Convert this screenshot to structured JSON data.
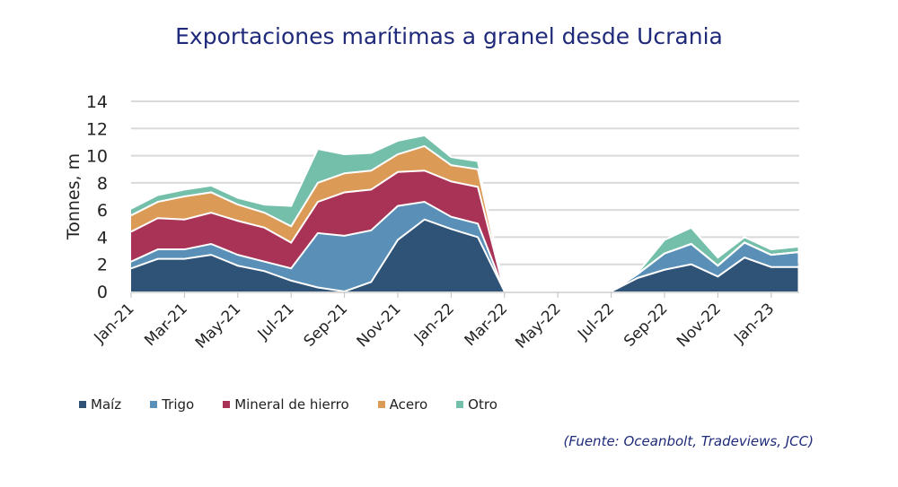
{
  "chart_data": {
    "type": "area",
    "stacked": true,
    "title": "Exportaciones marítimas a granel desde Ucrania",
    "xlabel": "",
    "ylabel": "Tonnes, m",
    "ylim": [
      0,
      14
    ],
    "yticks": [
      "0",
      "2",
      "4",
      "6",
      "8",
      "10",
      "12",
      "14"
    ],
    "grid": true,
    "legend_position": "bottom",
    "x": [
      "Jan-21",
      "Feb-21",
      "Mar-21",
      "Apr-21",
      "May-21",
      "Jun-21",
      "Jul-21",
      "Aug-21",
      "Sep-21",
      "Oct-21",
      "Nov-21",
      "Dec-21",
      "Jan-22",
      "Feb-22",
      "Mar-22",
      "Apr-22",
      "May-22",
      "Jun-22",
      "Jul-22",
      "Aug-22",
      "Sep-22",
      "Oct-22",
      "Nov-22",
      "Dec-22",
      "Jan-23",
      "Feb-23"
    ],
    "xticks": [
      "Jan-21",
      "Mar-21",
      "May-21",
      "Jul-21",
      "Sep-21",
      "Nov-21",
      "Jan-22",
      "Mar-22",
      "May-22",
      "Jul-22",
      "Sep-22",
      "Nov-22",
      "Jan-23"
    ],
    "gap": [
      "Apr-22",
      "May-22",
      "Jun-22"
    ],
    "series": [
      {
        "name": "Maíz",
        "color": "#2f5377",
        "values": [
          1.7,
          2.4,
          2.4,
          2.7,
          1.9,
          1.5,
          0.8,
          0.3,
          0,
          0.7,
          3.8,
          5.3,
          4.6,
          4.0,
          0,
          0,
          0,
          0,
          0,
          1.0,
          1.6,
          2.0,
          1.1,
          2.5,
          1.8,
          1.8
        ]
      },
      {
        "name": "Trigo",
        "color": "#5a90b8",
        "values": [
          0.5,
          0.7,
          0.7,
          0.8,
          0.8,
          0.7,
          0.9,
          4.0,
          4.1,
          3.8,
          2.5,
          1.3,
          0.9,
          1.0,
          0,
          0,
          0,
          0,
          0,
          0.3,
          1.2,
          1.5,
          0.8,
          1.1,
          0.9,
          1.1
        ]
      },
      {
        "name": "Mineral de hierro",
        "color": "#a93257",
        "values": [
          2.2,
          2.3,
          2.2,
          2.3,
          2.5,
          2.5,
          1.9,
          2.3,
          3.2,
          3.0,
          2.5,
          2.3,
          2.6,
          2.7,
          0,
          0,
          0,
          0,
          0,
          0,
          0,
          0,
          0,
          0,
          0,
          0
        ]
      },
      {
        "name": "Acero",
        "color": "#db9b57",
        "values": [
          1.2,
          1.2,
          1.7,
          1.5,
          1.2,
          1.1,
          1.2,
          1.4,
          1.4,
          1.4,
          1.3,
          1.8,
          1.2,
          1.3,
          0,
          0,
          0,
          0,
          0,
          0,
          0,
          0,
          0,
          0,
          0,
          0
        ]
      },
      {
        "name": "Otro",
        "color": "#74bfa9",
        "values": [
          0.5,
          0.5,
          0.5,
          0.5,
          0.5,
          0.6,
          1.5,
          2.5,
          1.4,
          1.3,
          1.0,
          0.8,
          0.6,
          0.6,
          0,
          0,
          0,
          0,
          0,
          0.1,
          1.0,
          1.2,
          0.6,
          0.4,
          0.4,
          0.4
        ]
      }
    ]
  },
  "source": "(Fuente: Oceanbolt, Tradeviews, JCC)"
}
